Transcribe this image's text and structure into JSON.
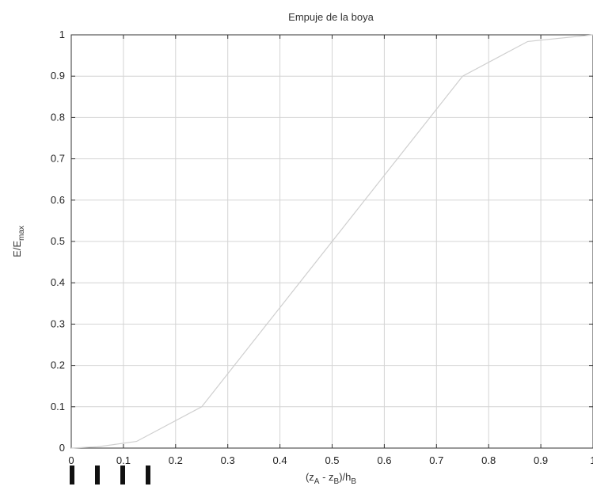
{
  "chart_data": {
    "type": "line",
    "title": "Empuje de la boya",
    "xlabel": {
      "base": "(z",
      "sub1": "A",
      "mid": " - z",
      "sub2": "B",
      "end": ")/h",
      "sub3": "B"
    },
    "ylabel": {
      "base": "E/E",
      "sub": "max"
    },
    "xlim": [
      0,
      1
    ],
    "ylim": [
      0,
      1
    ],
    "xticks": [
      {
        "value": 0,
        "label": "0"
      },
      {
        "value": 0.1,
        "label": "0.1"
      },
      {
        "value": 0.2,
        "label": "0.2"
      },
      {
        "value": 0.3,
        "label": "0.3"
      },
      {
        "value": 0.4,
        "label": "0.4"
      },
      {
        "value": 0.5,
        "label": "0.5"
      },
      {
        "value": 0.6,
        "label": "0.6"
      },
      {
        "value": 0.7,
        "label": "0.7"
      },
      {
        "value": 0.8,
        "label": "0.8"
      },
      {
        "value": 0.9,
        "label": "0.9"
      },
      {
        "value": 1,
        "label": "1"
      }
    ],
    "yticks": [
      {
        "value": 0,
        "label": "0"
      },
      {
        "value": 0.1,
        "label": "0.1"
      },
      {
        "value": 0.2,
        "label": "0.2"
      },
      {
        "value": 0.3,
        "label": "0.3"
      },
      {
        "value": 0.4,
        "label": "0.4"
      },
      {
        "value": 0.5,
        "label": "0.5"
      },
      {
        "value": 0.6,
        "label": "0.6"
      },
      {
        "value": 0.7,
        "label": "0.7"
      },
      {
        "value": 0.8,
        "label": "0.8"
      },
      {
        "value": 0.9,
        "label": "0.9"
      },
      {
        "value": 1,
        "label": "1"
      }
    ],
    "grid": true,
    "series": [
      {
        "color": "#cfcfcf",
        "x": [
          0,
          0.05,
          0.125,
          0.25,
          0.375,
          0.5,
          0.625,
          0.75,
          0.875,
          1.0
        ],
        "y": [
          0,
          0.003,
          0.016,
          0.1,
          0.3,
          0.5,
          0.7,
          0.9,
          0.984,
          1.0
        ]
      }
    ]
  }
}
